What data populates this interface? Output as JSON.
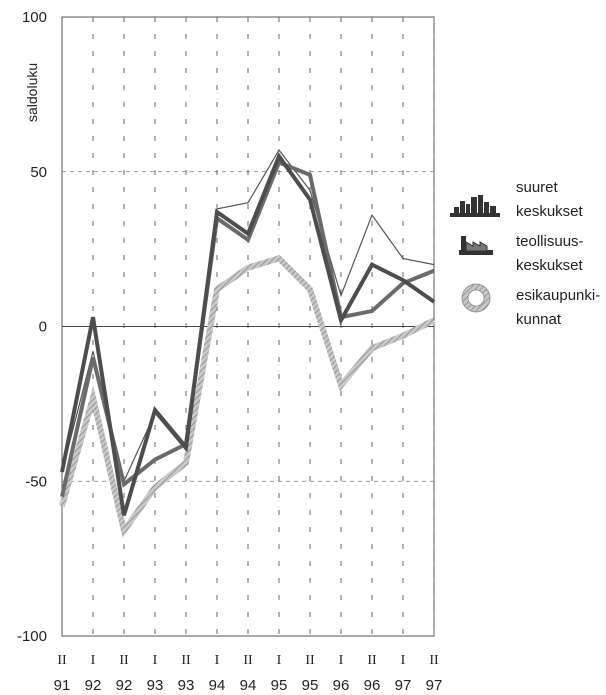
{
  "chart_data": {
    "type": "line",
    "title": "",
    "ylabel": "saldoluku",
    "xlabel": "",
    "ylim": [
      -100,
      100
    ],
    "yticks": [
      100,
      50,
      0,
      -50,
      -100
    ],
    "grid": true,
    "legend_position": "right",
    "x_half": [
      "II",
      "I",
      "II",
      "I",
      "II",
      "I",
      "II",
      "I",
      "II",
      "I",
      "II",
      "I",
      "II"
    ],
    "x_year": [
      "91",
      "92",
      "92",
      "93",
      "93",
      "94",
      "94",
      "95",
      "95",
      "96",
      "96",
      "97",
      "97"
    ],
    "series": [
      {
        "name": "suuret keskukset",
        "style": "thin",
        "color": "#555555",
        "values": [
          -47,
          -8,
          -50,
          -28,
          -40,
          38,
          40,
          57,
          44,
          10,
          36,
          22,
          20
        ]
      },
      {
        "name": "teollisuus- keskukset",
        "style": "thick",
        "color": "#4d4d4d",
        "values": [
          -47,
          3,
          -61,
          -27,
          -39,
          37,
          30,
          55,
          41,
          2,
          20,
          15,
          8
        ]
      },
      {
        "name": "",
        "style": "thick",
        "color": "#6a6a6a",
        "values": [
          -55,
          -10,
          -51,
          -43,
          -38,
          35,
          28,
          53,
          49,
          3,
          5,
          14,
          18
        ]
      },
      {
        "name": "esikaupunki- kunnat",
        "style": "hatched",
        "color": "#b8b8b8",
        "values": [
          -58,
          -23,
          -66,
          -52,
          -44,
          12,
          19,
          22,
          12,
          -19,
          -7,
          -3,
          2
        ]
      }
    ],
    "legend": [
      {
        "icon": "city-skyline-icon",
        "line1": "suuret",
        "line2": "keskukset"
      },
      {
        "icon": "factory-icon",
        "line1": "teollisuus-",
        "line2": "keskukset"
      },
      {
        "icon": "ring-icon",
        "line1": "esikaupunki-",
        "line2": "kunnat"
      }
    ]
  }
}
